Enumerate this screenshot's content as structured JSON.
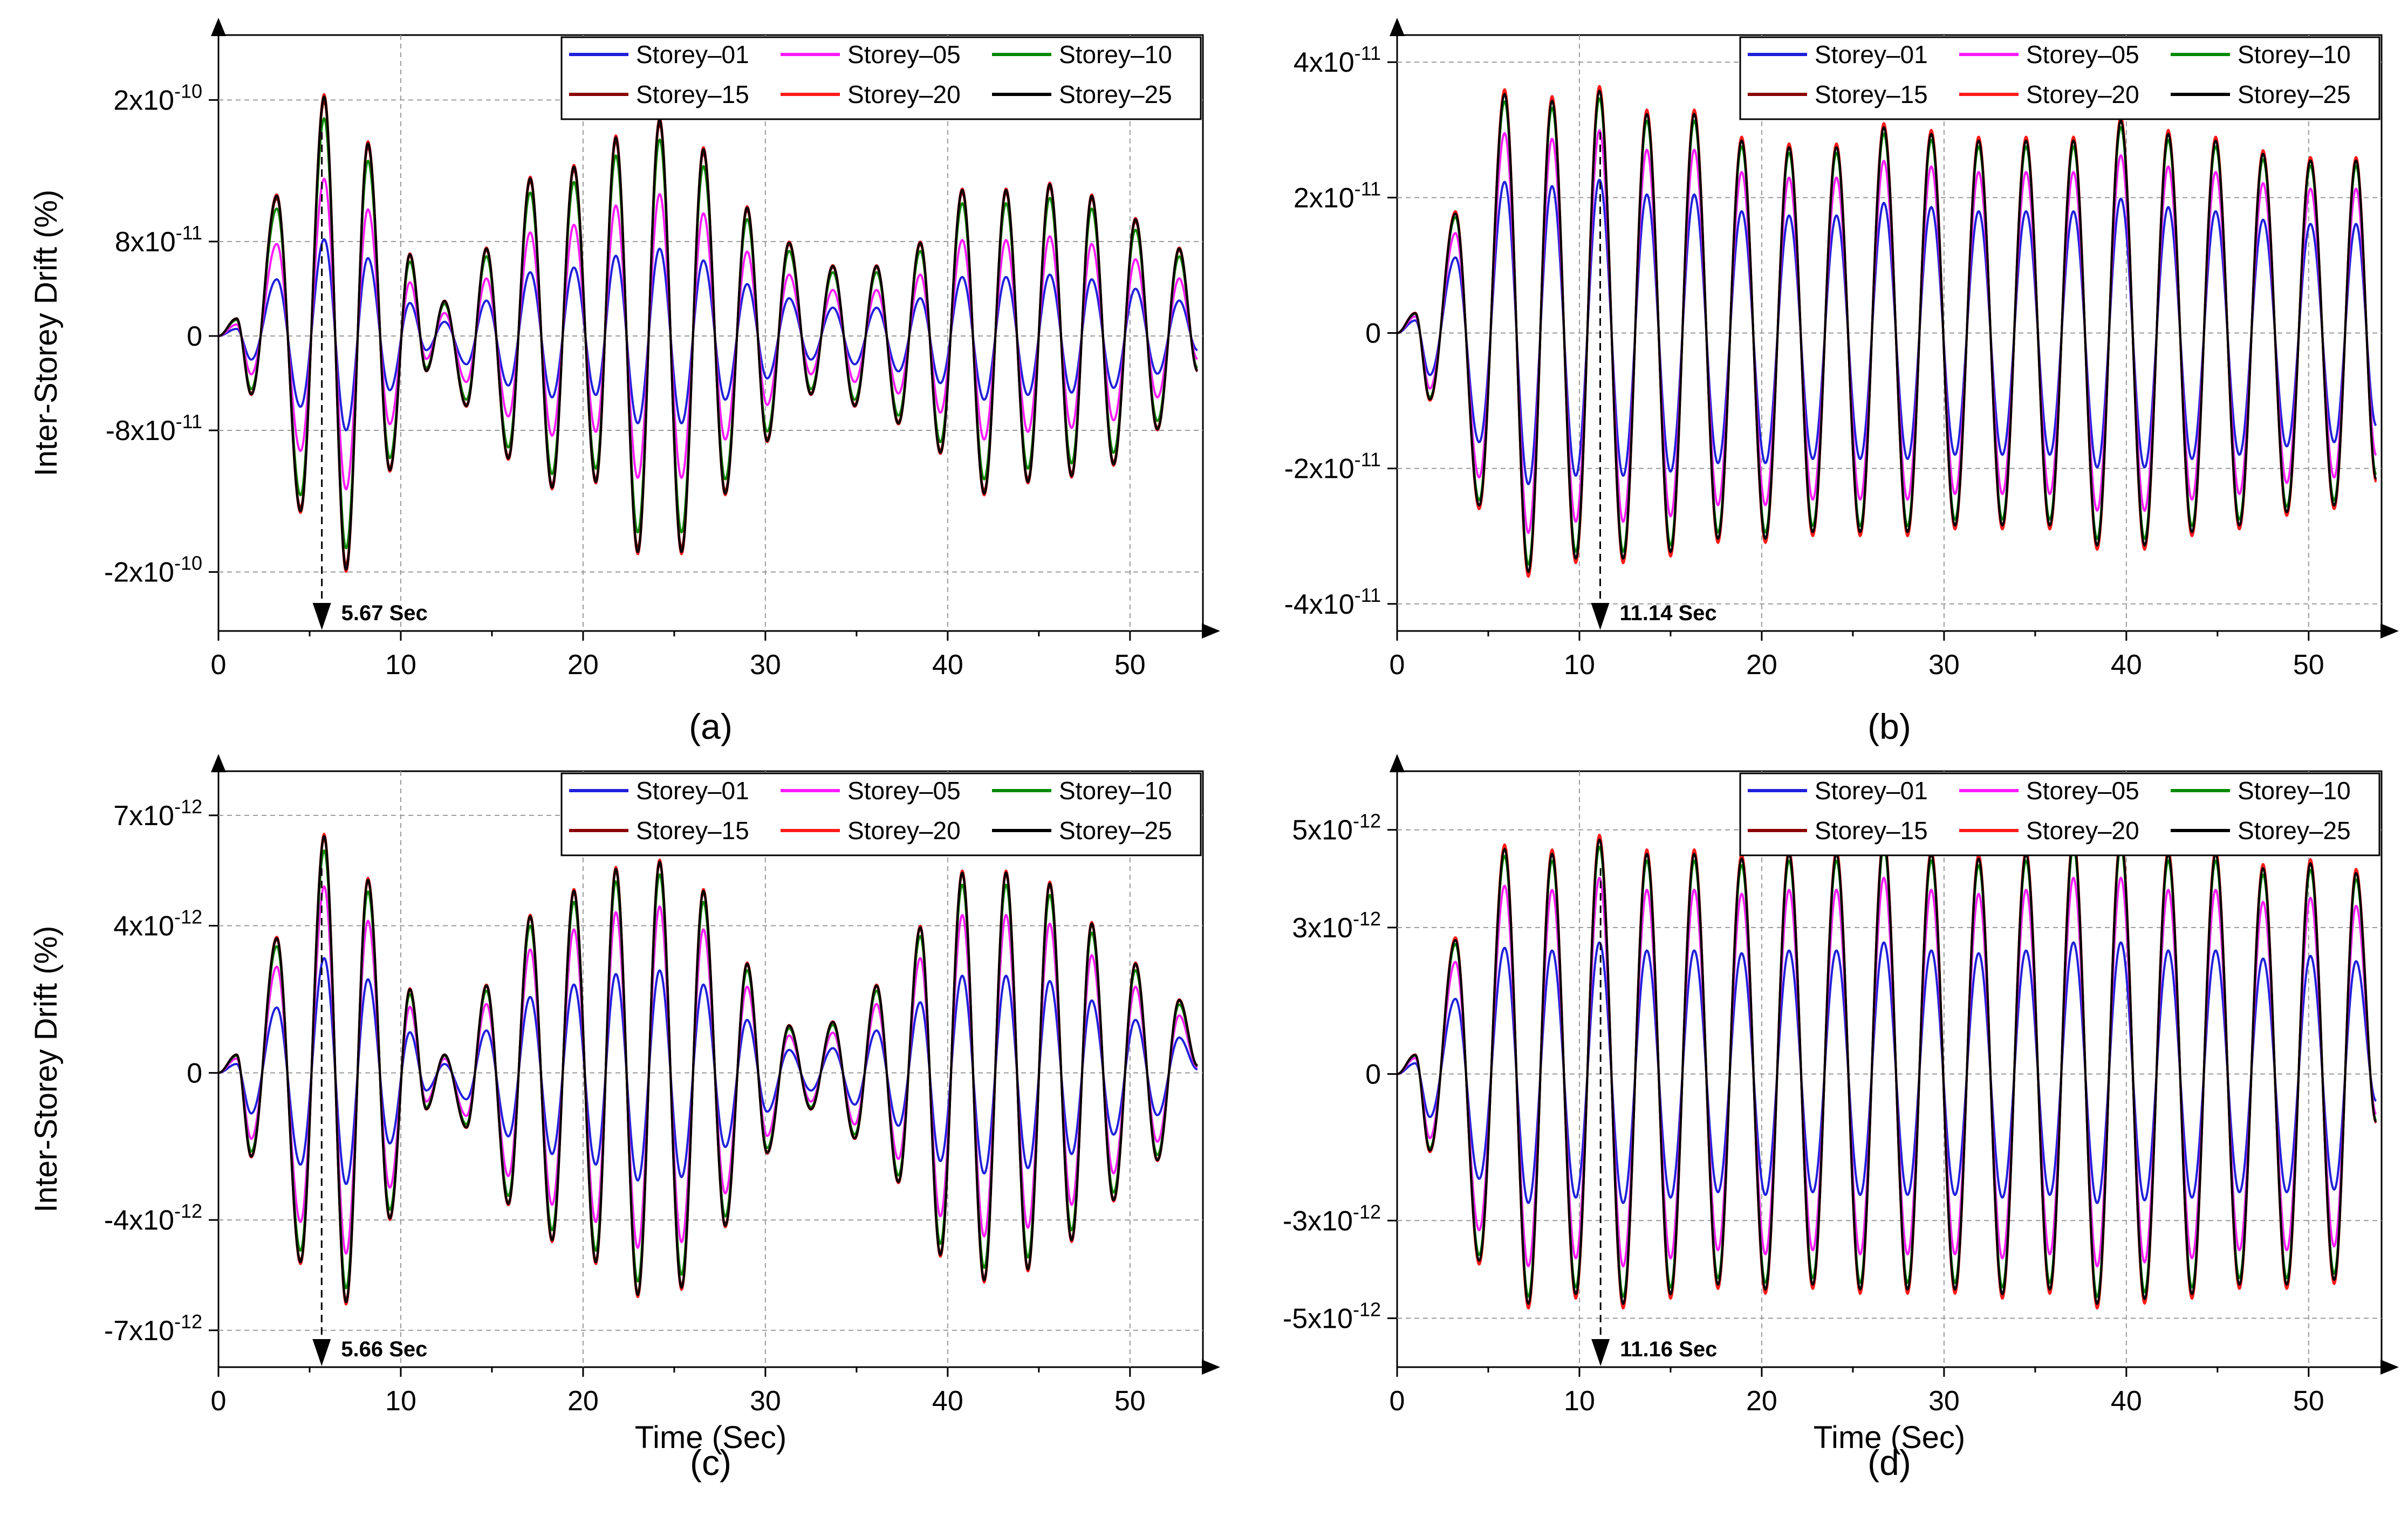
{
  "figure": {
    "xlabel": "Time (Sec)",
    "ylabel": "Inter-Storey Drift (%)"
  },
  "colors": {
    "Storey-01": "#1f1fdc",
    "Storey-05": "#ff19ff",
    "Storey-10": "#008a00",
    "Storey-15": "#8b0000",
    "Storey-20": "#ff1a1a",
    "Storey-25": "#000000",
    "grid": "#9a9a9a",
    "axis": "#000000"
  },
  "chart_data": [
    {
      "id": "a",
      "type": "line",
      "panel_label": "(a)",
      "xlim": [
        0,
        54
      ],
      "ylim": [
        -2.5e-10,
        2.55e-10
      ],
      "x_ticks": [
        0,
        10,
        20,
        30,
        40,
        50
      ],
      "x_tick_labels": [
        "0",
        "10",
        "20",
        "30",
        "40",
        "50"
      ],
      "y_ticks": [
        -2e-10,
        -8e-11,
        0,
        8e-11,
        2e-10
      ],
      "y_tick_labels": [
        {
          "base": "-2x10",
          "exp": "-10"
        },
        {
          "base": "-8x10",
          "exp": "-11"
        },
        {
          "base": "0",
          "exp": ""
        },
        {
          "base": "8x10",
          "exp": "-11"
        },
        {
          "base": "2x10",
          "exp": "-10"
        }
      ],
      "show_xlabel": false,
      "show_ylabel": true,
      "grid": true,
      "legend_position": "top-right",
      "legend": [
        "Storey–01",
        "Storey–05",
        "Storey–10",
        "Storey–15",
        "Storey–20",
        "Storey–25"
      ],
      "annotation": {
        "text": "5.67 Sec",
        "x": 5.67
      },
      "series": [
        {
          "name": "Storey-01",
          "scale": 0.4
        },
        {
          "name": "Storey-05",
          "scale": 0.65
        },
        {
          "name": "Storey-10",
          "scale": 0.9
        },
        {
          "name": "Storey-15",
          "scale": 0.97
        },
        {
          "name": "Storey-20",
          "scale": 1.0
        },
        {
          "name": "Storey-25",
          "scale": 0.99
        }
      ],
      "envelope_peaks": [
        [
          0,
          0
        ],
        [
          1.0,
          1.5e-11
        ],
        [
          1.8,
          -5e-11
        ],
        [
          3.2,
          1.2e-10
        ],
        [
          4.5,
          -1.5e-10
        ],
        [
          5.8,
          2.05e-10
        ],
        [
          7.0,
          -2e-10
        ],
        [
          8.2,
          1.65e-10
        ],
        [
          9.4,
          -1.15e-10
        ],
        [
          10.5,
          7e-11
        ],
        [
          11.4,
          -3e-11
        ],
        [
          12.4,
          3e-11
        ],
        [
          13.6,
          -6e-11
        ],
        [
          14.7,
          7.5e-11
        ],
        [
          15.9,
          -1.05e-10
        ],
        [
          17.1,
          1.35e-10
        ],
        [
          18.3,
          -1.3e-10
        ],
        [
          19.5,
          1.45e-10
        ],
        [
          20.7,
          -1.25e-10
        ],
        [
          21.8,
          1.7e-10
        ],
        [
          23.0,
          -1.85e-10
        ],
        [
          24.2,
          1.85e-10
        ],
        [
          25.4,
          -1.85e-10
        ],
        [
          26.6,
          1.6e-10
        ],
        [
          27.8,
          -1.35e-10
        ],
        [
          29.0,
          1.1e-10
        ],
        [
          30.1,
          -9e-11
        ],
        [
          31.3,
          8e-11
        ],
        [
          32.5,
          -5e-11
        ],
        [
          33.7,
          6e-11
        ],
        [
          34.9,
          -6e-11
        ],
        [
          36.1,
          6e-11
        ],
        [
          37.3,
          -7.5e-11
        ],
        [
          38.5,
          8e-11
        ],
        [
          39.6,
          -1e-10
        ],
        [
          40.8,
          1.25e-10
        ],
        [
          42.0,
          -1.35e-10
        ],
        [
          43.2,
          1.25e-10
        ],
        [
          44.4,
          -1.25e-10
        ],
        [
          45.6,
          1.3e-10
        ],
        [
          46.8,
          -1.2e-10
        ],
        [
          47.9,
          1.2e-10
        ],
        [
          49.1,
          -1.1e-10
        ],
        [
          50.3,
          1e-10
        ],
        [
          51.5,
          -8e-11
        ],
        [
          52.7,
          7.5e-11
        ],
        [
          53.7,
          -3e-11
        ]
      ]
    },
    {
      "id": "b",
      "type": "line",
      "panel_label": "(b)",
      "xlim": [
        0,
        54
      ],
      "ylim": [
        -4.4e-11,
        4.4e-11
      ],
      "x_ticks": [
        0,
        10,
        20,
        30,
        40,
        50
      ],
      "x_tick_labels": [
        "0",
        "10",
        "20",
        "30",
        "40",
        "50"
      ],
      "y_ticks": [
        -4e-11,
        -2e-11,
        0,
        2e-11,
        4e-11
      ],
      "y_tick_labels": [
        {
          "base": "-4x10",
          "exp": "-11"
        },
        {
          "base": "-2x10",
          "exp": "-11"
        },
        {
          "base": "0",
          "exp": ""
        },
        {
          "base": "2x10",
          "exp": "-11"
        },
        {
          "base": "4x10",
          "exp": "-11"
        }
      ],
      "show_xlabel": false,
      "show_ylabel": false,
      "grid": true,
      "legend_position": "top-right",
      "legend": [
        "Storey–01",
        "Storey–05",
        "Storey–10",
        "Storey–15",
        "Storey–20",
        "Storey–25"
      ],
      "annotation": {
        "text": "11.14 Sec",
        "x": 11.14
      },
      "series": [
        {
          "name": "Storey-01",
          "scale": 0.62
        },
        {
          "name": "Storey-05",
          "scale": 0.82
        },
        {
          "name": "Storey-10",
          "scale": 0.95
        },
        {
          "name": "Storey-15",
          "scale": 0.99
        },
        {
          "name": "Storey-20",
          "scale": 1.0
        },
        {
          "name": "Storey-25",
          "scale": 0.98
        }
      ],
      "envelope_peaks": [
        [
          0,
          0
        ],
        [
          1.0,
          3e-12
        ],
        [
          1.8,
          -1e-11
        ],
        [
          3.2,
          1.8e-11
        ],
        [
          4.5,
          -2.6e-11
        ],
        [
          5.9,
          3.6e-11
        ],
        [
          7.2,
          -3.6e-11
        ],
        [
          8.5,
          3.5e-11
        ],
        [
          9.8,
          -3.4e-11
        ],
        [
          11.1,
          3.65e-11
        ],
        [
          12.4,
          -3.4e-11
        ],
        [
          13.7,
          3.3e-11
        ],
        [
          15.0,
          -3.3e-11
        ],
        [
          16.3,
          3.3e-11
        ],
        [
          17.6,
          -3.1e-11
        ],
        [
          18.9,
          2.9e-11
        ],
        [
          20.2,
          -3.1e-11
        ],
        [
          21.5,
          2.8e-11
        ],
        [
          22.8,
          -3e-11
        ],
        [
          24.1,
          2.8e-11
        ],
        [
          25.4,
          -3e-11
        ],
        [
          26.7,
          3.1e-11
        ],
        [
          28.0,
          -3e-11
        ],
        [
          29.3,
          3e-11
        ],
        [
          30.6,
          -2.9e-11
        ],
        [
          31.9,
          2.9e-11
        ],
        [
          33.2,
          -2.9e-11
        ],
        [
          34.5,
          2.9e-11
        ],
        [
          35.8,
          -2.9e-11
        ],
        [
          37.1,
          2.9e-11
        ],
        [
          38.4,
          -3.2e-11
        ],
        [
          39.7,
          3.2e-11
        ],
        [
          41.0,
          -3.2e-11
        ],
        [
          42.3,
          3e-11
        ],
        [
          43.6,
          -3e-11
        ],
        [
          44.9,
          2.9e-11
        ],
        [
          46.2,
          -2.9e-11
        ],
        [
          47.5,
          2.7e-11
        ],
        [
          48.8,
          -2.7e-11
        ],
        [
          50.1,
          2.6e-11
        ],
        [
          51.4,
          -2.6e-11
        ],
        [
          52.6,
          2.6e-11
        ],
        [
          53.7,
          -2.2e-11
        ]
      ]
    },
    {
      "id": "c",
      "type": "line",
      "panel_label": "(c)",
      "xlim": [
        0,
        54
      ],
      "ylim": [
        -8e-12,
        8.2e-12
      ],
      "x_ticks": [
        0,
        10,
        20,
        30,
        40,
        50
      ],
      "x_tick_labels": [
        "0",
        "10",
        "20",
        "30",
        "40",
        "50"
      ],
      "y_ticks": [
        -7e-12,
        -4e-12,
        0,
        4e-12,
        7e-12
      ],
      "y_tick_labels": [
        {
          "base": "-7x10",
          "exp": "-12"
        },
        {
          "base": "-4x10",
          "exp": "-12"
        },
        {
          "base": "0",
          "exp": ""
        },
        {
          "base": "4x10",
          "exp": "-12"
        },
        {
          "base": "7x10",
          "exp": "-12"
        }
      ],
      "show_xlabel": true,
      "show_ylabel": true,
      "grid": true,
      "legend_position": "top-right",
      "legend": [
        "Storey–01",
        "Storey–05",
        "Storey–10",
        "Storey–15",
        "Storey–20",
        "Storey–25"
      ],
      "annotation": {
        "text": "5.66 Sec",
        "x": 5.66
      },
      "series": [
        {
          "name": "Storey-01",
          "scale": 0.48
        },
        {
          "name": "Storey-05",
          "scale": 0.78
        },
        {
          "name": "Storey-10",
          "scale": 0.93
        },
        {
          "name": "Storey-15",
          "scale": 0.98
        },
        {
          "name": "Storey-20",
          "scale": 1.0
        },
        {
          "name": "Storey-25",
          "scale": 0.99
        }
      ],
      "envelope_peaks": [
        [
          0,
          0
        ],
        [
          1.0,
          5e-13
        ],
        [
          1.8,
          -2.3e-12
        ],
        [
          3.2,
          3.7e-12
        ],
        [
          4.5,
          -5.2e-12
        ],
        [
          5.8,
          6.5e-12
        ],
        [
          7.0,
          -6.3e-12
        ],
        [
          8.2,
          5.3e-12
        ],
        [
          9.4,
          -4e-12
        ],
        [
          10.5,
          2.3e-12
        ],
        [
          11.4,
          -1e-12
        ],
        [
          12.4,
          5e-13
        ],
        [
          13.6,
          -1.5e-12
        ],
        [
          14.7,
          2.4e-12
        ],
        [
          15.9,
          -3.6e-12
        ],
        [
          17.1,
          4.3e-12
        ],
        [
          18.3,
          -4.6e-12
        ],
        [
          19.5,
          5e-12
        ],
        [
          20.7,
          -5.2e-12
        ],
        [
          21.8,
          5.6e-12
        ],
        [
          23.0,
          -6.1e-12
        ],
        [
          24.2,
          5.8e-12
        ],
        [
          25.4,
          -5.9e-12
        ],
        [
          26.6,
          5e-12
        ],
        [
          27.8,
          -4.2e-12
        ],
        [
          29.0,
          3e-12
        ],
        [
          30.1,
          -2.2e-12
        ],
        [
          31.3,
          1.3e-12
        ],
        [
          32.5,
          -1e-12
        ],
        [
          33.7,
          1.4e-12
        ],
        [
          34.9,
          -1.8e-12
        ],
        [
          36.1,
          2.4e-12
        ],
        [
          37.3,
          -3e-12
        ],
        [
          38.5,
          4e-12
        ],
        [
          39.6,
          -5e-12
        ],
        [
          40.8,
          5.5e-12
        ],
        [
          42.0,
          -5.7e-12
        ],
        [
          43.2,
          5.5e-12
        ],
        [
          44.4,
          -5.4e-12
        ],
        [
          45.6,
          5.2e-12
        ],
        [
          46.8,
          -4.6e-12
        ],
        [
          47.9,
          4.1e-12
        ],
        [
          49.1,
          -3.5e-12
        ],
        [
          50.3,
          3e-12
        ],
        [
          51.5,
          -2.4e-12
        ],
        [
          52.7,
          2e-12
        ],
        [
          53.7,
          2e-13
        ]
      ]
    },
    {
      "id": "d",
      "type": "line",
      "panel_label": "(d)",
      "xlim": [
        0,
        54
      ],
      "ylim": [
        -6e-12,
        6.2e-12
      ],
      "x_ticks": [
        0,
        10,
        20,
        30,
        40,
        50
      ],
      "x_tick_labels": [
        "0",
        "10",
        "20",
        "30",
        "40",
        "50"
      ],
      "y_ticks": [
        -5e-12,
        -3e-12,
        0,
        3e-12,
        5e-12
      ],
      "y_tick_labels": [
        {
          "base": "-5x10",
          "exp": "-12"
        },
        {
          "base": "-3x10",
          "exp": "-12"
        },
        {
          "base": "0",
          "exp": ""
        },
        {
          "base": "3x10",
          "exp": "-12"
        },
        {
          "base": "5x10",
          "exp": "-12"
        }
      ],
      "show_xlabel": true,
      "show_ylabel": false,
      "grid": true,
      "legend_position": "top-right",
      "legend": [
        "Storey–01",
        "Storey–05",
        "Storey–10",
        "Storey–15",
        "Storey–20",
        "Storey–25"
      ],
      "annotation": {
        "text": "11.16 Sec",
        "x": 11.16
      },
      "series": [
        {
          "name": "Storey-01",
          "scale": 0.55
        },
        {
          "name": "Storey-05",
          "scale": 0.82
        },
        {
          "name": "Storey-10",
          "scale": 0.95
        },
        {
          "name": "Storey-15",
          "scale": 0.99
        },
        {
          "name": "Storey-20",
          "scale": 1.0
        },
        {
          "name": "Storey-25",
          "scale": 0.98
        }
      ],
      "envelope_peaks": [
        [
          0,
          0
        ],
        [
          1.0,
          4e-13
        ],
        [
          1.8,
          -1.6e-12
        ],
        [
          3.2,
          2.8e-12
        ],
        [
          4.5,
          -3.9e-12
        ],
        [
          5.9,
          4.7e-12
        ],
        [
          7.2,
          -4.8e-12
        ],
        [
          8.5,
          4.6e-12
        ],
        [
          9.8,
          -4.6e-12
        ],
        [
          11.1,
          4.9e-12
        ],
        [
          12.4,
          -4.8e-12
        ],
        [
          13.7,
          4.6e-12
        ],
        [
          15.0,
          -4.6e-12
        ],
        [
          16.3,
          4.6e-12
        ],
        [
          17.6,
          -4.4e-12
        ],
        [
          18.9,
          4.5e-12
        ],
        [
          20.2,
          -4.5e-12
        ],
        [
          21.5,
          4.6e-12
        ],
        [
          22.8,
          -4.4e-12
        ],
        [
          24.1,
          4.6e-12
        ],
        [
          25.4,
          -4.5e-12
        ],
        [
          26.7,
          4.9e-12
        ],
        [
          28.0,
          -4.5e-12
        ],
        [
          29.3,
          4.6e-12
        ],
        [
          30.6,
          -4.5e-12
        ],
        [
          31.9,
          4.5e-12
        ],
        [
          33.2,
          -4.6e-12
        ],
        [
          34.5,
          4.6e-12
        ],
        [
          35.8,
          -4.5e-12
        ],
        [
          37.1,
          4.9e-12
        ],
        [
          38.4,
          -4.8e-12
        ],
        [
          39.7,
          4.9e-12
        ],
        [
          41.0,
          -4.7e-12
        ],
        [
          42.3,
          4.6e-12
        ],
        [
          43.6,
          -4.6e-12
        ],
        [
          44.9,
          4.6e-12
        ],
        [
          46.2,
          -4.4e-12
        ],
        [
          47.5,
          4.3e-12
        ],
        [
          48.8,
          -4.4e-12
        ],
        [
          50.1,
          4.4e-12
        ],
        [
          51.4,
          -4.3e-12
        ],
        [
          52.6,
          4.2e-12
        ],
        [
          53.7,
          -1e-12
        ]
      ]
    }
  ]
}
